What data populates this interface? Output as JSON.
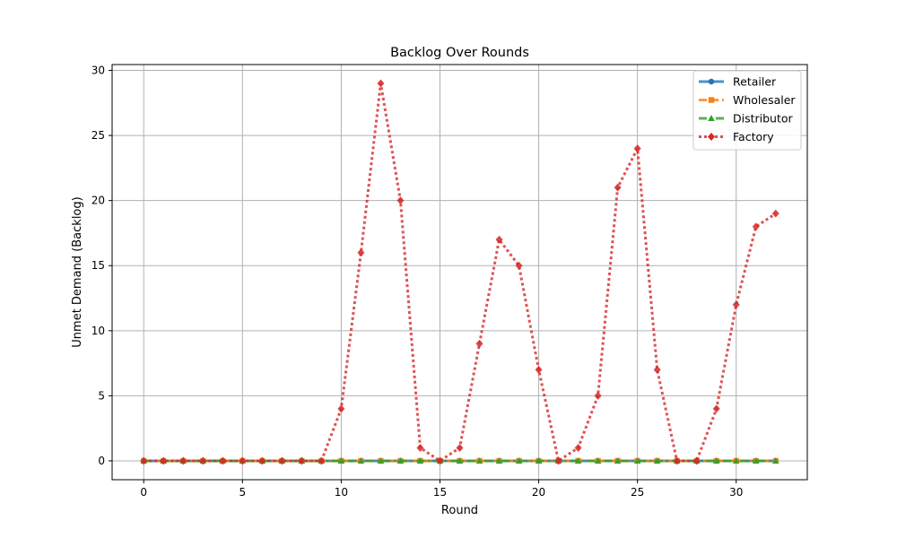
{
  "chart_data": {
    "type": "line",
    "title": "Backlog Over Rounds",
    "xlabel": "Round",
    "ylabel": "Unmet Demand (Backlog)",
    "xlim": [
      -1.6,
      33.6
    ],
    "ylim": [
      -1.45,
      30.45
    ],
    "xticks": [
      0,
      5,
      10,
      15,
      20,
      25,
      30
    ],
    "yticks": [
      0,
      5,
      10,
      15,
      20,
      25,
      30
    ],
    "grid": true,
    "legend_position": "top-right",
    "x": [
      0,
      1,
      2,
      3,
      4,
      5,
      6,
      7,
      8,
      9,
      10,
      11,
      12,
      13,
      14,
      15,
      16,
      17,
      18,
      19,
      20,
      21,
      22,
      23,
      24,
      25,
      26,
      27,
      28,
      29,
      30,
      31,
      32
    ],
    "series": [
      {
        "name": "Retailer",
        "color": "#1f77b4",
        "marker": "circle",
        "linestyle": "solid",
        "values": [
          0,
          0,
          0,
          0,
          0,
          0,
          0,
          0,
          0,
          0,
          0,
          0,
          0,
          0,
          0,
          0,
          0,
          0,
          0,
          0,
          0,
          0,
          0,
          0,
          0,
          0,
          0,
          0,
          0,
          0,
          0,
          0,
          0
        ]
      },
      {
        "name": "Wholesaler",
        "color": "#ff7f0e",
        "marker": "square",
        "linestyle": "dashed",
        "values": [
          0,
          0,
          0,
          0,
          0,
          0,
          0,
          0,
          0,
          0,
          0,
          0,
          0,
          0,
          0,
          0,
          0,
          0,
          0,
          0,
          0,
          0,
          0,
          0,
          0,
          0,
          0,
          0,
          0,
          0,
          0,
          0,
          0
        ]
      },
      {
        "name": "Distributor",
        "color": "#2ca02c",
        "marker": "triangle",
        "linestyle": "dashdot",
        "values": [
          0,
          0,
          0,
          0,
          0,
          0,
          0,
          0,
          0,
          0,
          0,
          0,
          0,
          0,
          0,
          0,
          0,
          0,
          0,
          0,
          0,
          0,
          0,
          0,
          0,
          0,
          0,
          0,
          0,
          0,
          0,
          0,
          0
        ]
      },
      {
        "name": "Factory",
        "color": "#d62728",
        "marker": "diamond",
        "linestyle": "dotted",
        "values": [
          0,
          0,
          0,
          0,
          0,
          0,
          0,
          0,
          0,
          0,
          4,
          16,
          29,
          20,
          1,
          0,
          1,
          9,
          17,
          15,
          7,
          0,
          1,
          5,
          21,
          24,
          7,
          0,
          0,
          4,
          12,
          18,
          19
        ]
      }
    ]
  }
}
